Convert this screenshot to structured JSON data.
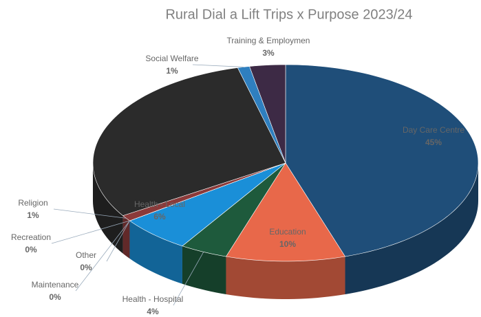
{
  "chart_data": {
    "type": "pie3d",
    "title": "Rural Dial a Lift Trips x Purpose 2023/24",
    "categories": [
      "Day Care Centre",
      "Education",
      "Health - Hospital",
      "Health - Local",
      "Maintenance",
      "Other",
      "Recreation",
      "Religion",
      null,
      "Social Welfare",
      "Training & Employmen"
    ],
    "values": [
      45,
      10,
      4,
      6,
      0,
      0,
      0,
      1,
      30,
      1,
      3
    ],
    "value_labels": [
      "45%",
      "10%",
      "4%",
      "6%",
      "0%",
      "0%",
      "0%",
      "1%",
      null,
      "1%",
      "3%"
    ],
    "colors": [
      "#1f4e79",
      "#e8684a",
      "#1e5a3c",
      "#1a8fd8",
      "#5a7a9a",
      "#7a6a8a",
      "#9a5a5a",
      "#8b3a3a",
      "#2b2b2b",
      "#2f7fbf",
      "#3d2a45"
    ]
  }
}
